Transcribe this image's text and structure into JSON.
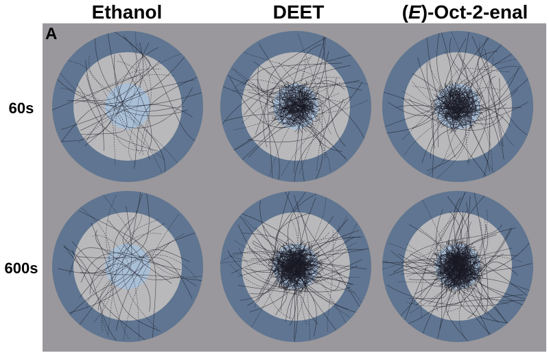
{
  "columns": [
    {
      "label": "Ethanol",
      "label_prefix": "",
      "label_italic": "",
      "label_suffix": ""
    },
    {
      "label": "DEET",
      "label_prefix": "",
      "label_italic": "",
      "label_suffix": ""
    },
    {
      "label": "",
      "label_prefix": "(",
      "label_italic": "E",
      "label_suffix": ")-Oct-2-enal"
    }
  ],
  "rows": [
    {
      "label": "60s"
    },
    {
      "label": "600s"
    }
  ],
  "panel_letter": "A",
  "colors": {
    "background": "#9a989c",
    "outer_ring": "#5f7591",
    "inner_field": "#b9b9bb",
    "center_zone": "#a9bfd6",
    "tracks": "#1a1a24"
  },
  "arenas": [
    {
      "row": 0,
      "col": 0,
      "track_density": "sparse",
      "center_density": 0.0
    },
    {
      "row": 0,
      "col": 1,
      "track_density": "moderate",
      "center_density": 0.55
    },
    {
      "row": 0,
      "col": 2,
      "track_density": "moderate",
      "center_density": 0.65
    },
    {
      "row": 1,
      "col": 0,
      "track_density": "sparse",
      "center_density": 0.0
    },
    {
      "row": 1,
      "col": 1,
      "track_density": "dense",
      "center_density": 0.95
    },
    {
      "row": 1,
      "col": 2,
      "track_density": "dense",
      "center_density": 1.0
    }
  ]
}
